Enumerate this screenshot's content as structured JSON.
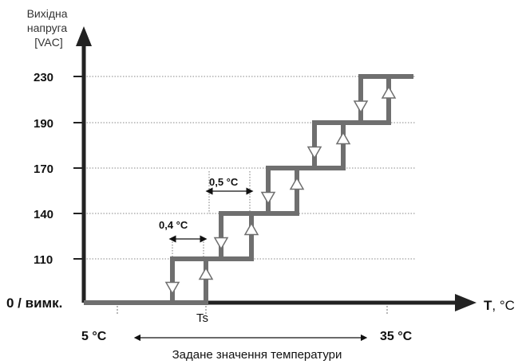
{
  "chart_data": {
    "type": "line",
    "ylabel_lines": [
      "Вихідна",
      "напруга",
      "[VAC]"
    ],
    "xlabel": "T",
    "xlabel_unit": ", °C",
    "y_ticks": [
      {
        "value": 0,
        "label": "0  / вимк."
      },
      {
        "value": 110,
        "label": "110"
      },
      {
        "value": 140,
        "label": "140"
      },
      {
        "value": 170,
        "label": "170"
      },
      {
        "value": 190,
        "label": "190"
      },
      {
        "value": 230,
        "label": "230"
      }
    ],
    "levels": [
      0,
      110,
      140,
      170,
      190,
      230
    ],
    "step_width_celsius": 0.5,
    "hysteresis_celsius": 0.4,
    "setpoint_label": "Ts",
    "range_min_label": "5 °C",
    "range_max_label": "35 °C",
    "range_caption": "Задане значення температури",
    "annotations": [
      {
        "text": "0,4 °C",
        "refers_to": "hysteresis"
      },
      {
        "text": "0,5 °C",
        "refers_to": "step_width"
      }
    ],
    "grid": true,
    "colors": {
      "curve": "#6f6f6f",
      "axis": "#222222",
      "grid": "#888888"
    }
  }
}
